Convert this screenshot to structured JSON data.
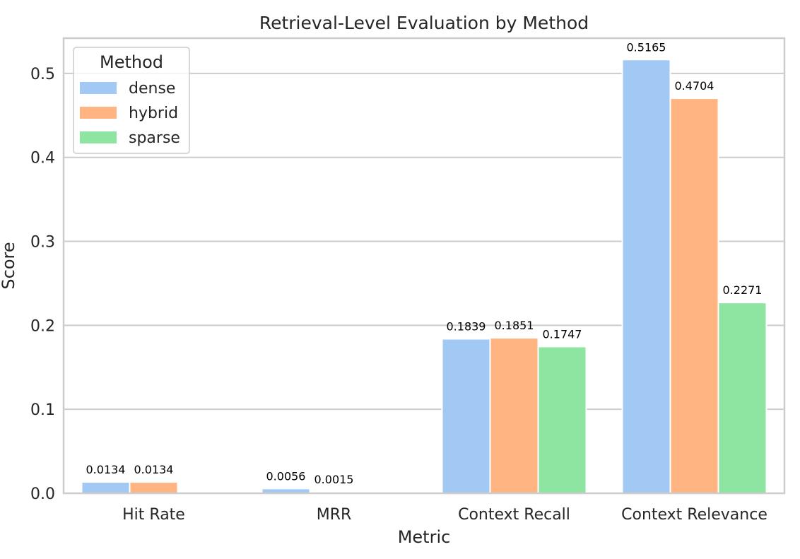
{
  "chart_data": {
    "type": "bar",
    "title": "Retrieval-Level Evaluation by Method",
    "xlabel": "Metric",
    "ylabel": "Score",
    "categories": [
      "Hit Rate",
      "MRR",
      "Context Recall",
      "Context Relevance"
    ],
    "series": [
      {
        "name": "dense",
        "color": "#a1c9f4",
        "values": [
          0.0134,
          0.0056,
          0.1839,
          0.5165
        ],
        "labels": [
          "0.0134",
          "0.0056",
          "0.1839",
          "0.5165"
        ]
      },
      {
        "name": "hybrid",
        "color": "#ffb482",
        "values": [
          0.0134,
          0.0015,
          0.1851,
          0.4704
        ],
        "labels": [
          "0.0134",
          "0.0015",
          "0.1851",
          "0.4704"
        ]
      },
      {
        "name": "sparse",
        "color": "#8de5a1",
        "values": [
          0.0,
          0.0,
          0.1747,
          0.2271
        ],
        "labels": [
          "",
          "",
          "0.1747",
          "0.2271"
        ]
      }
    ],
    "ylim": [
      0,
      0.542
    ],
    "yticks": [
      0.0,
      0.1,
      0.2,
      0.3,
      0.4,
      0.5
    ],
    "ytick_labels": [
      "0.0",
      "0.1",
      "0.2",
      "0.3",
      "0.4",
      "0.5"
    ],
    "grid": "horizontal",
    "legend": {
      "title": "Method",
      "placement": "top-left"
    }
  }
}
